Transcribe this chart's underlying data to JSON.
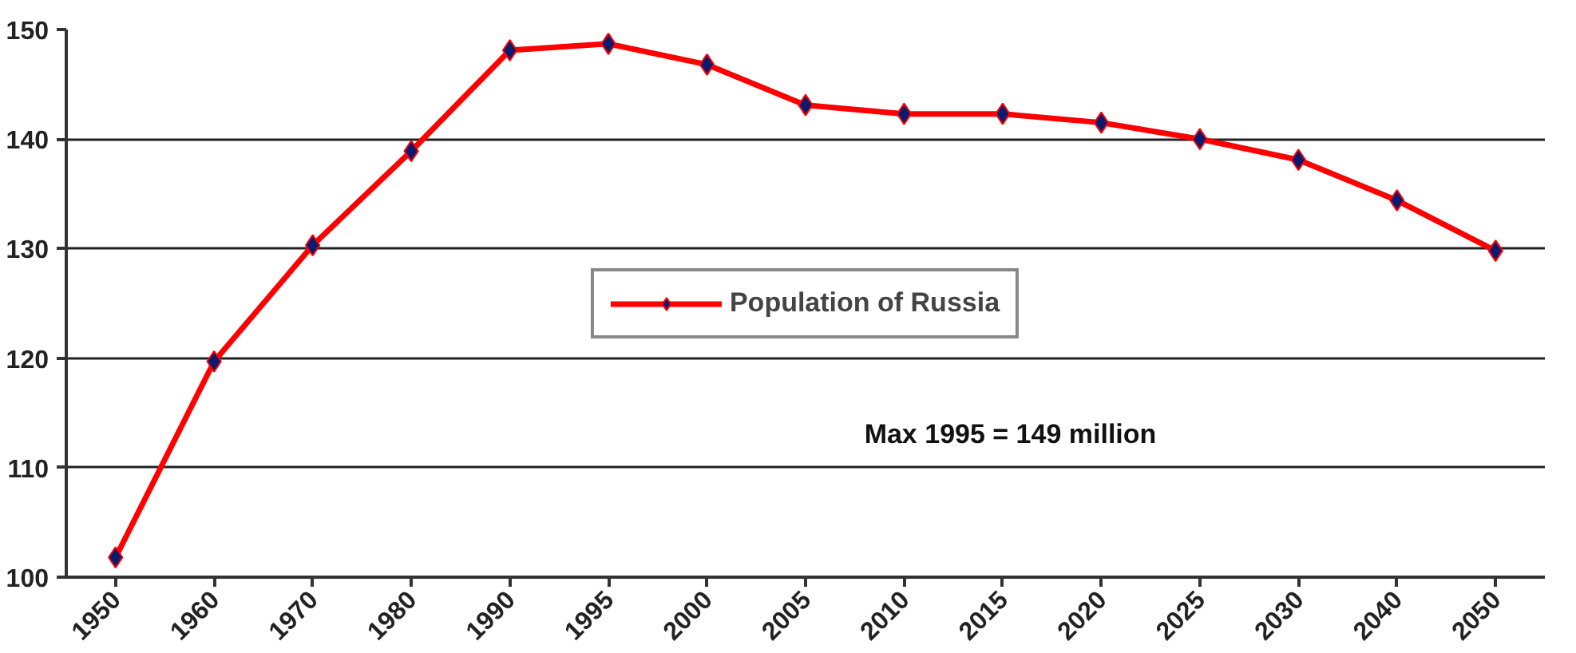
{
  "chart_data": {
    "type": "line",
    "categories": [
      "1950",
      "1960",
      "1970",
      "1980",
      "1990",
      "1995",
      "2000",
      "2005",
      "2010",
      "2015",
      "2020",
      "2025",
      "2030",
      "2040",
      "2050"
    ],
    "series": [
      {
        "name": "Population of Russia",
        "color": "#ff0000",
        "values": [
          101.8,
          119.7,
          130.3,
          138.9,
          148.1,
          148.7,
          146.8,
          143.1,
          142.3,
          142.3,
          141.5,
          140.0,
          138.1,
          134.4,
          129.8
        ]
      }
    ],
    "ylim": [
      100,
      150
    ],
    "yticks": [
      100,
      110,
      120,
      130,
      140,
      150
    ],
    "grid": "y",
    "legend": "center",
    "marker": "diamond",
    "line_style": "solid",
    "annotations": [
      "Max 1995 = 149 million"
    ]
  }
}
